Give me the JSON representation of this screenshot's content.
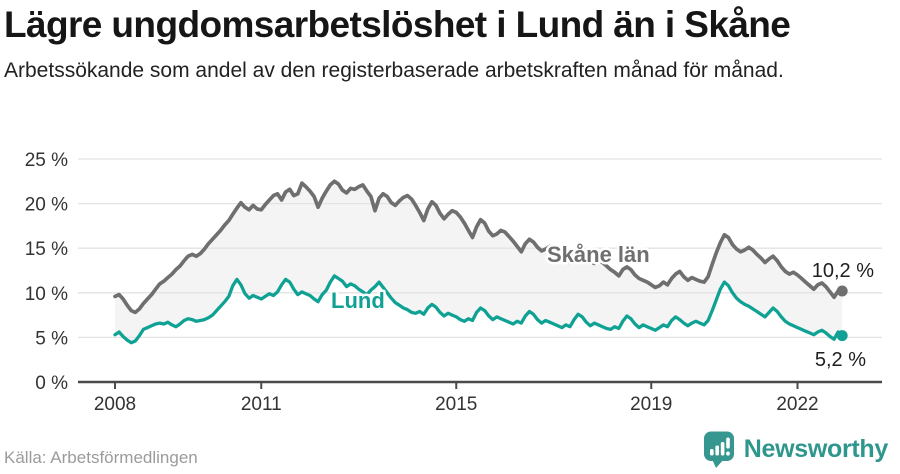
{
  "header": {
    "title": "Lägre ungdomsarbetslöshet i Lund än i Skåne",
    "subtitle": "Arbetssökande som andel av den registerbaserade arbetskraften månad för månad."
  },
  "footer": {
    "source": "Källa: Arbetsförmedlingen",
    "logo_text": "Newsworthy"
  },
  "colors": {
    "skane_line": "#6F6F6F",
    "lund_line": "#0FA294",
    "fill_between": "#F4F4F4",
    "gridline": "#E3E3E3",
    "axis": "#4A4A4A",
    "axis_text": "#333333",
    "end_label_text": "#1F1F1F",
    "logo_teal": "#35978F"
  },
  "chart_data": {
    "type": "line",
    "title": "Lägre ungdomsarbetslöshet i Lund än i Skåne",
    "subtitle": "Arbetssökande som andel av den registerbaserade arbetskraften månad för månad.",
    "unit": "%",
    "x_interval": "monthly",
    "x_start": "2008-01",
    "x_end": "2022-12",
    "x_tick_years": [
      2008,
      2011,
      2015,
      2019,
      2022
    ],
    "y_ticks": [
      0,
      5,
      10,
      15,
      20,
      25
    ],
    "y_tick_suffix": " %",
    "ylim": [
      0,
      26
    ],
    "grid": "horizontal",
    "legend_position": "inline-labels",
    "series": [
      {
        "name": "Skåne län",
        "end_label": "10,2 %",
        "last_value": 10.2,
        "values": [
          9.6,
          9.8,
          9.3,
          8.6,
          8.0,
          7.8,
          8.2,
          8.8,
          9.3,
          9.8,
          10.4,
          11.0,
          11.3,
          11.7,
          12.1,
          12.6,
          13.0,
          13.6,
          14.1,
          14.3,
          14.1,
          14.4,
          14.9,
          15.5,
          16.0,
          16.5,
          17.0,
          17.6,
          18.1,
          18.8,
          19.5,
          20.1,
          19.6,
          19.3,
          19.8,
          19.4,
          19.3,
          19.9,
          20.4,
          20.9,
          21.1,
          20.4,
          21.3,
          21.6,
          20.9,
          21.1,
          22.3,
          21.9,
          21.4,
          20.8,
          19.6,
          20.6,
          21.4,
          22.1,
          22.5,
          22.2,
          21.5,
          21.2,
          21.7,
          21.6,
          21.9,
          22.1,
          21.4,
          20.8,
          19.2,
          20.6,
          21.1,
          20.8,
          20.1,
          19.8,
          20.3,
          20.7,
          20.9,
          20.5,
          19.8,
          19.0,
          18.1,
          19.4,
          20.2,
          19.8,
          18.9,
          18.3,
          18.8,
          19.2,
          19.0,
          18.5,
          17.8,
          17.0,
          16.2,
          17.4,
          18.2,
          17.8,
          16.9,
          16.4,
          16.6,
          17.0,
          16.8,
          16.3,
          15.8,
          15.2,
          14.6,
          15.5,
          16.0,
          15.7,
          15.1,
          14.7,
          14.9,
          15.2,
          15.0,
          14.7,
          14.2,
          13.8,
          13.4,
          14.3,
          14.8,
          14.5,
          13.9,
          13.5,
          13.3,
          13.6,
          13.4,
          13.0,
          12.6,
          12.3,
          11.9,
          12.6,
          12.9,
          12.6,
          12.0,
          11.6,
          11.4,
          11.2,
          10.9,
          10.6,
          10.8,
          11.2,
          10.9,
          11.6,
          12.1,
          12.4,
          11.8,
          11.4,
          11.7,
          11.5,
          11.3,
          11.2,
          11.8,
          13.2,
          14.5,
          15.6,
          16.5,
          16.2,
          15.4,
          14.9,
          14.6,
          14.8,
          15.1,
          14.8,
          14.3,
          13.9,
          13.4,
          13.8,
          14.1,
          13.6,
          12.9,
          12.4,
          12.1,
          12.3,
          12.0,
          11.6,
          11.2,
          10.8,
          10.4,
          10.9,
          11.1,
          10.7,
          10.1,
          9.5,
          10.2,
          10.2
        ]
      },
      {
        "name": "Lund",
        "end_label": "5,2 %",
        "last_value": 5.2,
        "values": [
          5.3,
          5.6,
          5.1,
          4.7,
          4.4,
          4.6,
          5.2,
          5.9,
          6.1,
          6.3,
          6.5,
          6.6,
          6.5,
          6.7,
          6.4,
          6.2,
          6.5,
          6.9,
          7.1,
          7.0,
          6.8,
          6.9,
          7.0,
          7.2,
          7.5,
          8.0,
          8.5,
          9.0,
          9.6,
          10.8,
          11.5,
          10.9,
          9.9,
          9.4,
          9.7,
          9.5,
          9.3,
          9.6,
          9.9,
          9.7,
          10.1,
          10.9,
          11.5,
          11.2,
          10.4,
          9.8,
          10.1,
          9.9,
          9.7,
          9.3,
          9.0,
          9.8,
          10.3,
          11.2,
          11.9,
          11.6,
          11.3,
          10.7,
          11.0,
          10.8,
          10.4,
          10.1,
          9.8,
          10.3,
          10.7,
          11.2,
          10.6,
          10.0,
          9.4,
          8.9,
          8.6,
          8.3,
          8.1,
          7.8,
          7.7,
          7.9,
          7.6,
          8.3,
          8.7,
          8.4,
          7.8,
          7.4,
          7.7,
          7.5,
          7.3,
          7.0,
          6.8,
          7.1,
          6.9,
          7.8,
          8.3,
          8.0,
          7.4,
          7.0,
          7.3,
          7.1,
          6.9,
          6.7,
          6.5,
          6.8,
          6.6,
          7.4,
          7.9,
          7.6,
          7.0,
          6.6,
          6.9,
          6.7,
          6.5,
          6.3,
          6.1,
          6.4,
          6.2,
          7.0,
          7.6,
          7.3,
          6.7,
          6.3,
          6.6,
          6.4,
          6.2,
          6.0,
          5.9,
          6.2,
          6.0,
          6.8,
          7.4,
          7.1,
          6.5,
          6.1,
          6.4,
          6.2,
          6.0,
          5.8,
          6.1,
          6.4,
          6.2,
          6.9,
          7.3,
          7.0,
          6.6,
          6.3,
          6.6,
          6.8,
          6.6,
          6.4,
          6.9,
          8.0,
          9.2,
          10.4,
          11.2,
          10.8,
          10.0,
          9.4,
          9.0,
          8.7,
          8.5,
          8.2,
          7.9,
          7.6,
          7.3,
          7.8,
          8.3,
          7.9,
          7.3,
          6.8,
          6.5,
          6.3,
          6.1,
          5.9,
          5.7,
          5.5,
          5.3,
          5.6,
          5.8,
          5.5,
          5.1,
          4.8,
          5.6,
          5.2
        ]
      }
    ]
  }
}
